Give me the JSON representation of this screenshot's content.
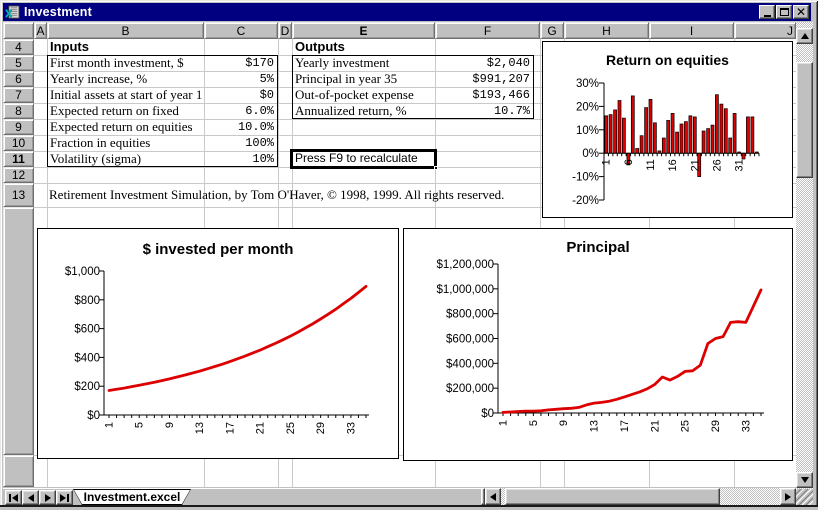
{
  "window": {
    "title": "Investment"
  },
  "active_cell": {
    "column": "E",
    "row": "11"
  },
  "columns": [
    "A",
    "B",
    "C",
    "D",
    "E",
    "F",
    "G",
    "H",
    "I",
    "J"
  ],
  "rows": [
    "4",
    "5",
    "6",
    "7",
    "8",
    "9",
    "10",
    "11",
    "12",
    "13"
  ],
  "inputs": {
    "header": "Inputs",
    "rows": [
      {
        "label": "First month investment, $",
        "value": "$170"
      },
      {
        "label": "Yearly increase, %",
        "value": "5%"
      },
      {
        "label": "Initial assets at start of year 1",
        "value": "$0"
      },
      {
        "label": "Expected return on fixed",
        "value": "6.0%"
      },
      {
        "label": "Expected return on equities",
        "value": "10.0%"
      },
      {
        "label": "Fraction in equities",
        "value": "100%"
      },
      {
        "label": "Volatility (sigma)",
        "value": "10%"
      }
    ]
  },
  "outputs": {
    "header": "Outputs",
    "rows": [
      {
        "label": "Yearly investment",
        "value": "$2,040"
      },
      {
        "label": "Principal in year 35",
        "value": "$991,207"
      },
      {
        "label": "Out-of-pocket expense",
        "value": "$193,466"
      },
      {
        "label": "Annualized return, %",
        "value": "10.7%"
      }
    ]
  },
  "recalc_note": "Press F9 to recalculate",
  "credit": "Retirement Investment Simulation, by Tom O'Haver, © 1998, 1999.  All rights reserved.",
  "sheet_tab": {
    "label": "Investment.excel"
  },
  "icons": {
    "titlebar": [
      "minimize-icon",
      "maximize-icon",
      "close-icon"
    ],
    "tab_nav": [
      "first-sheet-icon",
      "previous-sheet-icon",
      "next-sheet-icon",
      "last-sheet-icon"
    ],
    "app": "worksheet-icon"
  },
  "colors": {
    "titlebar": "#000080",
    "chrome": "#c0c0c0",
    "gridline": "#c9c9c9",
    "series_red": "#dd0000",
    "bar_border": "#000000"
  },
  "chart_data": [
    {
      "type": "bar",
      "title": "Return on equities",
      "x": [
        1,
        2,
        3,
        4,
        5,
        6,
        7,
        8,
        9,
        10,
        11,
        12,
        13,
        14,
        15,
        16,
        17,
        18,
        19,
        20,
        21,
        22,
        23,
        24,
        25,
        26,
        27,
        28,
        29,
        30,
        31,
        32,
        33,
        34,
        35
      ],
      "values": [
        16,
        16.5,
        18.5,
        22.5,
        15,
        -5,
        24.5,
        2,
        7.5,
        19.5,
        23,
        13,
        1,
        6.5,
        14,
        17,
        9,
        12.5,
        13.5,
        16,
        15.5,
        -10,
        9.5,
        10.5,
        12,
        25,
        21,
        19,
        6.5,
        17,
        0.5,
        -2.5,
        15.5,
        15.5,
        0.5
      ],
      "ylim": [
        -20,
        30
      ],
      "y_ticks": [
        30,
        20,
        10,
        0,
        -10,
        -20
      ],
      "y_tick_labels": [
        "30%",
        "20%",
        "10%",
        "0%",
        "-10%",
        "-20%"
      ],
      "x_tick_labels": [
        1,
        6,
        11,
        16,
        21,
        26,
        31
      ],
      "grid": false,
      "legend": false
    },
    {
      "type": "line",
      "title": "$ invested per month",
      "x": [
        1,
        2,
        3,
        4,
        5,
        6,
        7,
        8,
        9,
        10,
        11,
        12,
        13,
        14,
        15,
        16,
        17,
        18,
        19,
        20,
        21,
        22,
        23,
        24,
        25,
        26,
        27,
        28,
        29,
        30,
        31,
        32,
        33,
        34,
        35
      ],
      "values": [
        170,
        179,
        187,
        197,
        207,
        217,
        228,
        239,
        251,
        264,
        277,
        291,
        305,
        321,
        337,
        353,
        371,
        390,
        409,
        430,
        451,
        474,
        497,
        522,
        548,
        576,
        605,
        635,
        667,
        700,
        735,
        772,
        810,
        851,
        893
      ],
      "ylim": [
        0,
        1000
      ],
      "y_ticks": [
        1000,
        800,
        600,
        400,
        200,
        0
      ],
      "y_tick_labels": [
        "$1,000",
        "$800",
        "$600",
        "$400",
        "$200",
        "$0"
      ],
      "x_tick_labels": [
        1,
        5,
        9,
        13,
        17,
        21,
        25,
        29,
        33
      ],
      "grid": false,
      "legend": false
    },
    {
      "type": "line",
      "title": "Principal",
      "x": [
        1,
        2,
        3,
        4,
        5,
        6,
        7,
        8,
        9,
        10,
        11,
        12,
        13,
        14,
        15,
        16,
        17,
        18,
        19,
        20,
        21,
        22,
        23,
        24,
        25,
        26,
        27,
        28,
        29,
        30,
        31,
        32,
        33,
        34,
        35
      ],
      "values": [
        5000,
        8000,
        12000,
        15000,
        15000,
        18000,
        25000,
        30000,
        35000,
        38000,
        45000,
        65000,
        80000,
        85000,
        95000,
        110000,
        130000,
        150000,
        170000,
        195000,
        230000,
        290000,
        265000,
        295000,
        335000,
        340000,
        385000,
        560000,
        600000,
        615000,
        730000,
        735000,
        730000,
        860000,
        991207
      ],
      "ylim": [
        0,
        1200000
      ],
      "y_ticks": [
        1200000,
        1000000,
        800000,
        600000,
        400000,
        200000,
        0
      ],
      "y_tick_labels": [
        "$1,200,000",
        "$1,000,000",
        "$800,000",
        "$600,000",
        "$400,000",
        "$200,000",
        "$0"
      ],
      "x_tick_labels": [
        1,
        5,
        9,
        13,
        17,
        21,
        25,
        29,
        33
      ],
      "grid": false,
      "legend": false
    }
  ]
}
